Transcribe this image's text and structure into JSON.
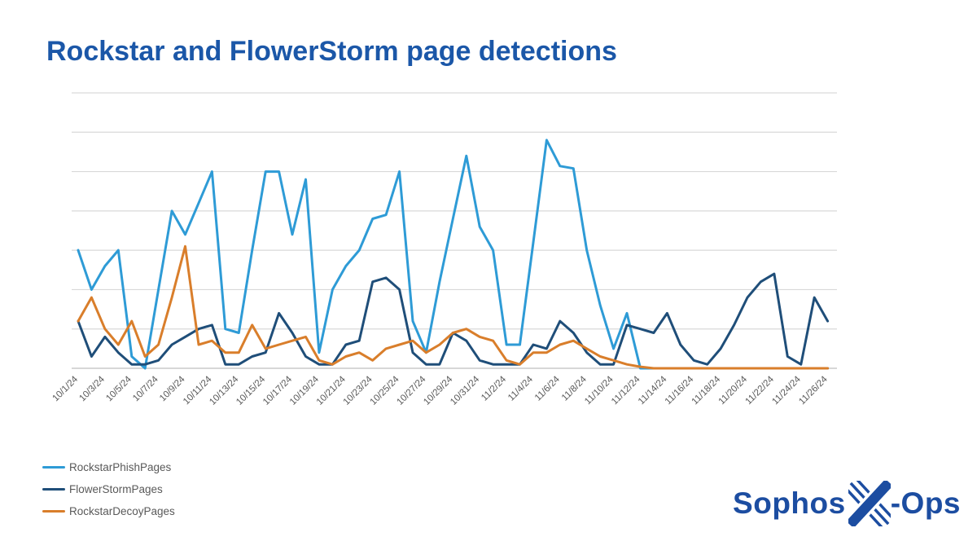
{
  "title": "Rockstar and FlowerStorm page detections",
  "legend": [
    {
      "label": "RockstarPhishPages",
      "color": "#2E9BD6"
    },
    {
      "label": "FlowerStormPages",
      "color": "#1F4E79"
    },
    {
      "label": "RockstarDecoyPages",
      "color": "#D97E2B"
    }
  ],
  "logo": {
    "prefix": "Sophos",
    "suffix": "-Ops",
    "color": "#1C4DA1"
  },
  "colors": {
    "title": "#1B57A8",
    "grid": "#D9D9D9",
    "axis": "#BFBFBF",
    "tick_text": "#595959"
  },
  "chart_data": {
    "type": "line",
    "title": "Rockstar and FlowerStorm page detections",
    "xlabel": "",
    "ylabel": "",
    "ylim": [
      0,
      35
    ],
    "y_gridline_step": 5,
    "grid": true,
    "y_axis_labels_visible": false,
    "x_tick_rotation": 45,
    "legend_position": "bottom-left",
    "x": [
      "10/1/24",
      "10/2/24",
      "10/3/24",
      "10/4/24",
      "10/5/24",
      "10/6/24",
      "10/7/24",
      "10/8/24",
      "10/9/24",
      "10/10/24",
      "10/11/24",
      "10/12/24",
      "10/13/24",
      "10/14/24",
      "10/15/24",
      "10/16/24",
      "10/17/24",
      "10/18/24",
      "10/19/24",
      "10/20/24",
      "10/21/24",
      "10/22/24",
      "10/23/24",
      "10/24/24",
      "10/25/24",
      "10/26/24",
      "10/27/24",
      "10/28/24",
      "10/29/24",
      "10/30/24",
      "10/31/24",
      "11/1/24",
      "11/2/24",
      "11/3/24",
      "11/4/24",
      "11/5/24",
      "11/6/24",
      "11/7/24",
      "11/8/24",
      "11/9/24",
      "11/10/24",
      "11/11/24",
      "11/12/24",
      "11/13/24",
      "11/14/24",
      "11/15/24",
      "11/16/24",
      "11/17/24",
      "11/18/24",
      "11/19/24",
      "11/20/24",
      "11/21/24",
      "11/22/24",
      "11/23/24",
      "11/24/24",
      "11/25/24",
      "11/26/24"
    ],
    "x_tick_labels": [
      "10/1/24",
      "10/3/24",
      "10/5/24",
      "10/7/24",
      "10/9/24",
      "10/11/24",
      "10/13/24",
      "10/15/24",
      "10/17/24",
      "10/19/24",
      "10/21/24",
      "10/23/24",
      "10/25/24",
      "10/27/24",
      "10/29/24",
      "10/31/24",
      "11/2/24",
      "11/4/24",
      "11/6/24",
      "11/8/24",
      "11/10/24",
      "11/12/24",
      "11/14/24",
      "11/16/24",
      "11/18/24",
      "11/20/24",
      "11/22/24",
      "11/24/24",
      "11/26/24"
    ],
    "series": [
      {
        "name": "RockstarPhishPages",
        "color": "#2E9BD6",
        "values": [
          15,
          10,
          13,
          15,
          1.5,
          0,
          10,
          20,
          17,
          21,
          25,
          5,
          4.5,
          15,
          25,
          25,
          17,
          24,
          2,
          10,
          13,
          15,
          19,
          19.5,
          25,
          6,
          2,
          11,
          19,
          27,
          18,
          15,
          3,
          3,
          16,
          29,
          25.7,
          25.4,
          15,
          8,
          2.5,
          7,
          0,
          0,
          0,
          0,
          0,
          0,
          0,
          0,
          0,
          0,
          0,
          0,
          0,
          0,
          0
        ]
      },
      {
        "name": "FlowerStormPages",
        "color": "#1F4E79",
        "values": [
          6,
          1.5,
          4,
          2,
          0.5,
          0.5,
          1,
          3,
          4,
          5,
          5.5,
          0.5,
          0.5,
          1.5,
          2,
          7,
          4.5,
          1.5,
          0.5,
          0.5,
          3,
          3.5,
          11,
          11.5,
          10,
          2,
          0.5,
          0.5,
          4.5,
          3.5,
          1,
          0.5,
          0.5,
          0.5,
          3,
          2.5,
          6,
          4.5,
          2,
          0.5,
          0.5,
          5.5,
          5,
          4.5,
          7,
          3,
          1,
          0.5,
          2.5,
          5.5,
          9,
          11,
          12,
          1.5,
          0.5,
          9,
          6
        ]
      },
      {
        "name": "RockstarDecoyPages",
        "color": "#D97E2B",
        "values": [
          6,
          9,
          5,
          3,
          6,
          1.5,
          3,
          9,
          15.5,
          3,
          3.5,
          2,
          2,
          5.5,
          2.5,
          3,
          3.5,
          4,
          1,
          0.5,
          1.5,
          2,
          1,
          2.5,
          3,
          3.5,
          2,
          3,
          4.5,
          5,
          4,
          3.5,
          1,
          0.5,
          2,
          2,
          3,
          3.5,
          2.5,
          1.5,
          1,
          0.5,
          0.2,
          0,
          0,
          0,
          0,
          0,
          0,
          0,
          0,
          0,
          0,
          0,
          0,
          0,
          0
        ]
      }
    ]
  }
}
